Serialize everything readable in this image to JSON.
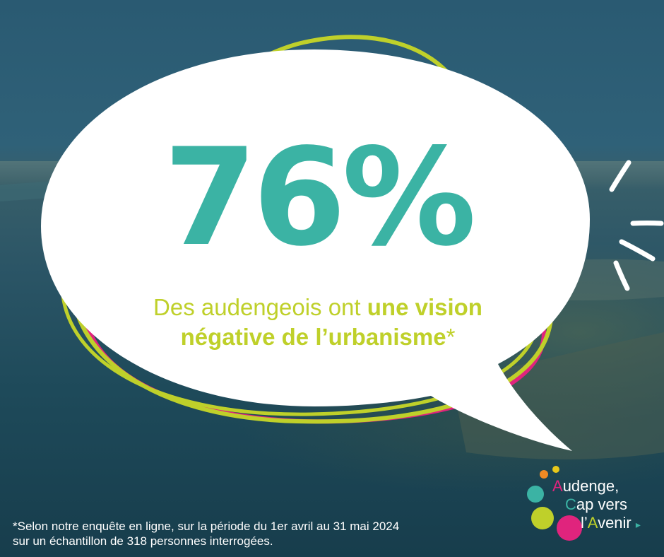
{
  "headline": {
    "percentage": "76%",
    "subtitle_regular": "Des audengeois ont ",
    "subtitle_bold_1": "une vision",
    "subtitle_bold_2": "négative de l’urbanisme",
    "subtitle_asterisk": "*"
  },
  "footnote": {
    "line1": "*Selon notre enquête en ligne, sur la période du 1er avril au 31 mai 2024",
    "line2": "sur un échantillon de 318 personnes interrogées."
  },
  "logo": {
    "line1_initial": "A",
    "line1_rest": "udenge,",
    "line2_initial": "C",
    "line2_rest": "ap vers",
    "line3_prefix": "l’",
    "line3_initial": "A",
    "line3_rest": "venir",
    "arrow": "▸"
  },
  "colors": {
    "teal": "#3bb3a4",
    "lime": "#bfd02a",
    "pink": "#e0247d",
    "bubble": "#ffffff"
  },
  "icons": [
    "speech-bubble",
    "burst-lines-icon",
    "people-icon",
    "leaf-icon",
    "building-icon",
    "gear-icon",
    "euro-icon"
  ]
}
